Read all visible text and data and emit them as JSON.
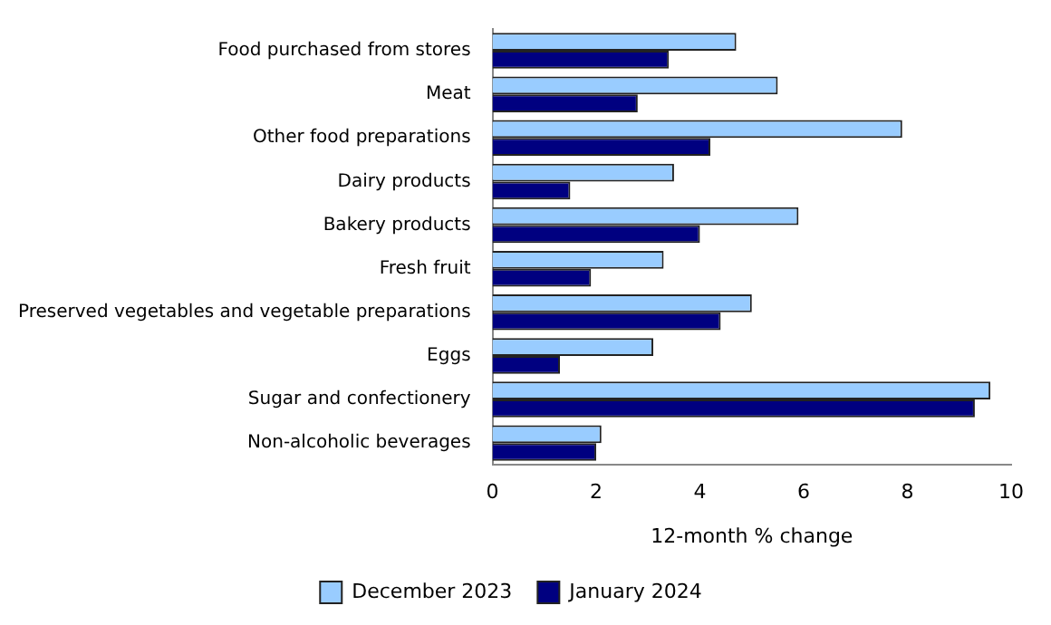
{
  "chart_data": {
    "type": "bar",
    "orientation": "horizontal",
    "xlabel": "12-month % change",
    "categories": [
      "Food purchased from stores",
      "Meat",
      "Other food preparations",
      "Dairy products",
      "Bakery products",
      "Fresh fruit",
      "Preserved vegetables and vegetable preparations",
      "Eggs",
      "Sugar and confectionery",
      "Non-alcoholic beverages"
    ],
    "series": [
      {
        "name": "December 2023",
        "color": "#99ccff",
        "values": [
          4.7,
          5.5,
          7.9,
          3.5,
          5.9,
          3.3,
          5.0,
          3.1,
          9.6,
          2.1
        ]
      },
      {
        "name": "January 2024",
        "color": "#000080",
        "values": [
          3.4,
          2.8,
          4.2,
          1.5,
          4.0,
          1.9,
          4.4,
          1.3,
          9.3,
          2.0
        ]
      }
    ],
    "xlim": [
      0,
      10
    ],
    "xticks": [
      0,
      2,
      4,
      6,
      8,
      10
    ],
    "grid": false,
    "legend": "bottom"
  }
}
